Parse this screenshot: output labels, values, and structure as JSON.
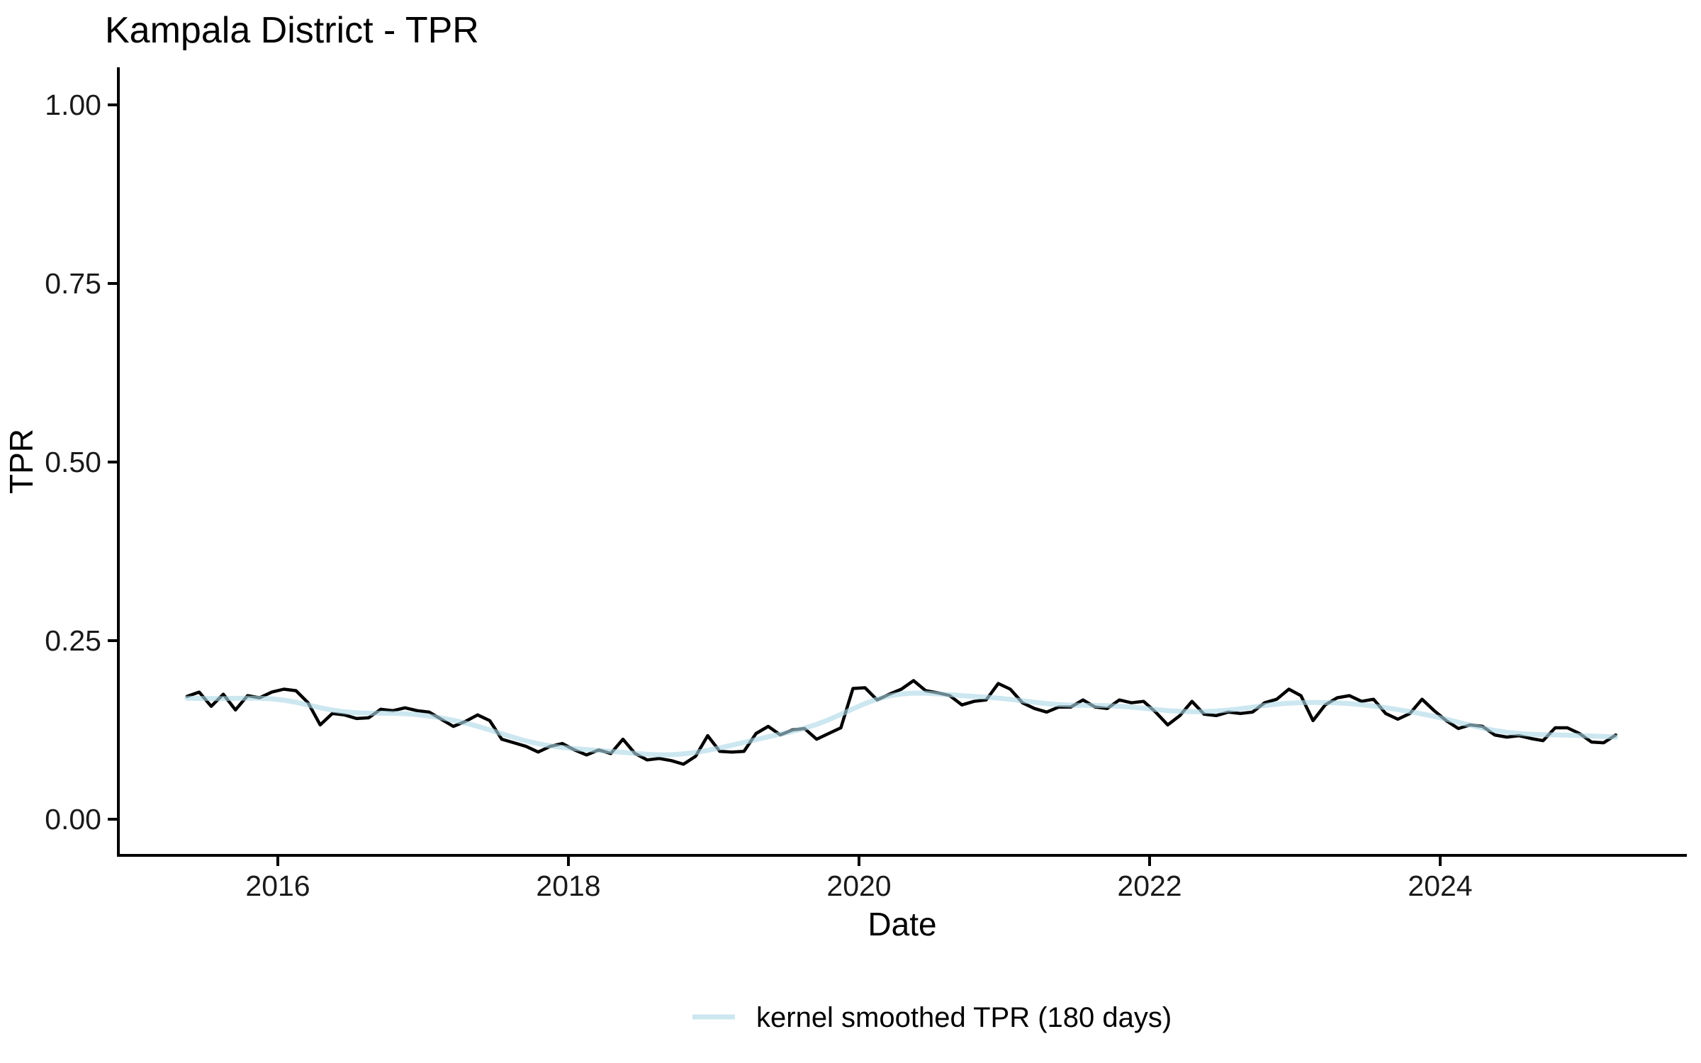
{
  "page": {
    "background": "#ffffff",
    "text_color": "#000000"
  },
  "chart_data": {
    "type": "line",
    "title": "Kampala District - TPR",
    "xlabel": "Date",
    "ylabel": "TPR",
    "grid": false,
    "theme": "classic (left and bottom axis lines only)",
    "x_axis": {
      "tick_values": [
        2016,
        2018,
        2020,
        2022,
        2024
      ],
      "tick_labels": [
        "2016",
        "2018",
        "2020",
        "2022",
        "2024"
      ],
      "data_range_decimal_years": [
        2015.375,
        2025.208
      ]
    },
    "y_axis": {
      "tick_values": [
        0,
        0.25,
        0.5,
        0.75,
        1
      ],
      "tick_labels": [
        "0.00",
        "0.25",
        "0.50",
        "0.75",
        "1.00"
      ],
      "range": [
        0,
        1
      ]
    },
    "legend": {
      "position": "bottom-center",
      "entries": [
        {
          "label": "kernel smoothed TPR (180 days)",
          "color": "#ADD8E6",
          "opacity": 0.62
        }
      ]
    },
    "series": [
      {
        "name": "TPR",
        "type": "line",
        "color": "#000000",
        "stroke_width": 4.5,
        "x_start_decimal_year": 2015.375,
        "start_month": "2015-05",
        "end_month": "2025-03",
        "points_per_year": 12,
        "values": [
          0.172,
          0.178,
          0.158,
          0.175,
          0.153,
          0.173,
          0.17,
          0.178,
          0.182,
          0.18,
          0.163,
          0.132,
          0.148,
          0.146,
          0.141,
          0.142,
          0.154,
          0.152,
          0.156,
          0.152,
          0.15,
          0.14,
          0.13,
          0.137,
          0.146,
          0.138,
          0.112,
          0.107,
          0.102,
          0.094,
          0.102,
          0.106,
          0.097,
          0.09,
          0.097,
          0.092,
          0.112,
          0.092,
          0.083,
          0.085,
          0.082,
          0.077,
          0.088,
          0.117,
          0.095,
          0.094,
          0.095,
          0.12,
          0.13,
          0.118,
          0.125,
          0.127,
          0.112,
          0.12,
          0.128,
          0.183,
          0.184,
          0.167,
          0.175,
          0.182,
          0.194,
          0.18,
          0.177,
          0.173,
          0.16,
          0.165,
          0.167,
          0.19,
          0.182,
          0.163,
          0.155,
          0.15,
          0.157,
          0.157,
          0.167,
          0.157,
          0.155,
          0.167,
          0.163,
          0.165,
          0.15,
          0.132,
          0.145,
          0.165,
          0.147,
          0.145,
          0.15,
          0.148,
          0.15,
          0.163,
          0.168,
          0.182,
          0.173,
          0.138,
          0.16,
          0.17,
          0.173,
          0.165,
          0.168,
          0.148,
          0.14,
          0.148,
          0.168,
          0.152,
          0.138,
          0.127,
          0.132,
          0.13,
          0.118,
          0.115,
          0.117,
          0.113,
          0.11,
          0.128,
          0.128,
          0.12,
          0.108,
          0.107,
          0.118
        ]
      },
      {
        "name": "kernel smoothed TPR (180 days)",
        "type": "line",
        "color": "#ADD8E6",
        "opacity": 0.62,
        "stroke_width": 7,
        "derived_from": "TPR",
        "method": "gaussian kernel smoothing",
        "bandwidth_days": 180
      }
    ]
  }
}
